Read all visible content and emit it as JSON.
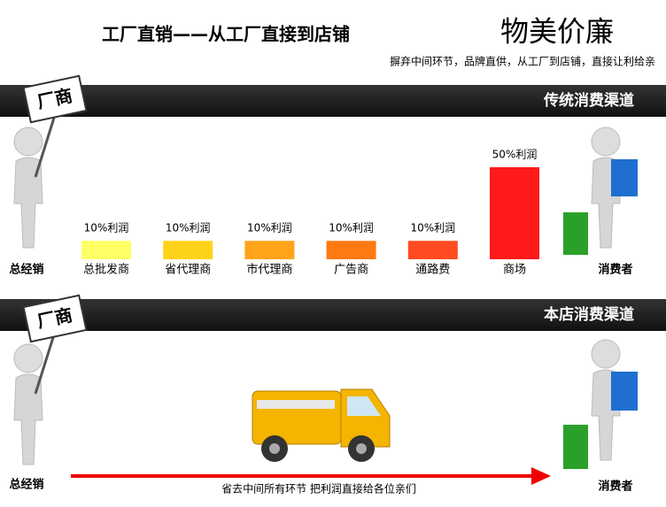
{
  "header": {
    "title": "工厂直销——从工厂直接到店铺",
    "brand": "物美价廉",
    "subtitle": "摒弃中间环节，品牌直供，从工厂到店铺，直接让利给亲"
  },
  "chart_data": {
    "type": "bar",
    "title": "传统消费渠道",
    "categories": [
      "总批发商",
      "省代理商",
      "市代理商",
      "广告商",
      "通路费",
      "商场"
    ],
    "values": [
      10,
      10,
      10,
      10,
      10,
      50
    ],
    "value_labels": [
      "10%利润",
      "10%利润",
      "10%利润",
      "10%利润",
      "10%利润",
      "50%利润"
    ],
    "colors": [
      "#ffff66",
      "#ffd21a",
      "#ffa31a",
      "#ff7a12",
      "#ff4b1f",
      "#ff1a1a"
    ],
    "start_label": "总经销",
    "end_label": "消费者",
    "maker_sign": "厂商"
  },
  "direct": {
    "title": "本店消费渠道",
    "start_label": "总经销",
    "end_label": "消费者",
    "maker_sign": "厂商",
    "arrow_text": "省去中间所有环节 把利润直接给各位亲们"
  }
}
